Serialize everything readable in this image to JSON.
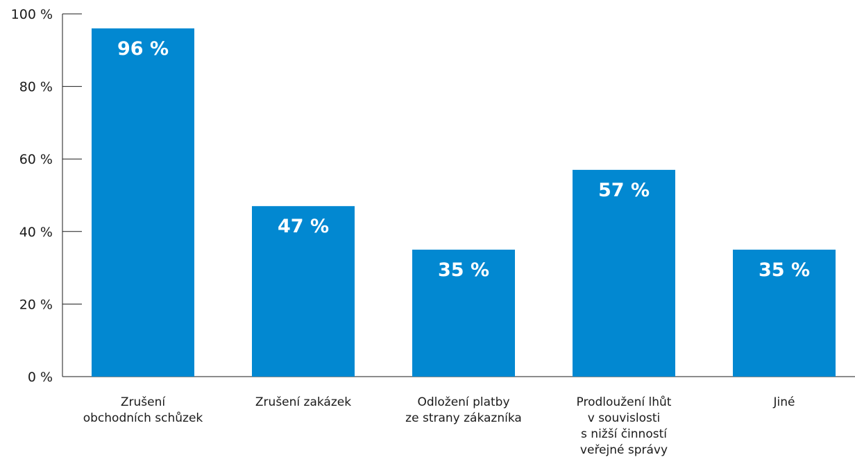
{
  "chart_data": {
    "type": "bar",
    "categories": [
      [
        "Zrušení",
        "obchodních schůzek"
      ],
      [
        "Zrušení zakázek"
      ],
      [
        "Odložení platby",
        "ze strany zákazníka"
      ],
      [
        "Prodloužení lhůt",
        "v souvislosti",
        "s nižší činností",
        "veřejné správy"
      ],
      [
        "Jiné"
      ]
    ],
    "values": [
      96,
      47,
      35,
      57,
      35
    ],
    "data_labels": [
      "96 %",
      "47 %",
      "35 %",
      "57 %",
      "35 %"
    ],
    "y_ticks": [
      0,
      20,
      40,
      60,
      80,
      100
    ],
    "y_tick_labels": [
      "0 %",
      "20 %",
      "40 %",
      "60 %",
      "80 %",
      "100 %"
    ],
    "ylim": [
      0,
      100
    ],
    "bar_color": "#0288d1",
    "grid": false
  }
}
